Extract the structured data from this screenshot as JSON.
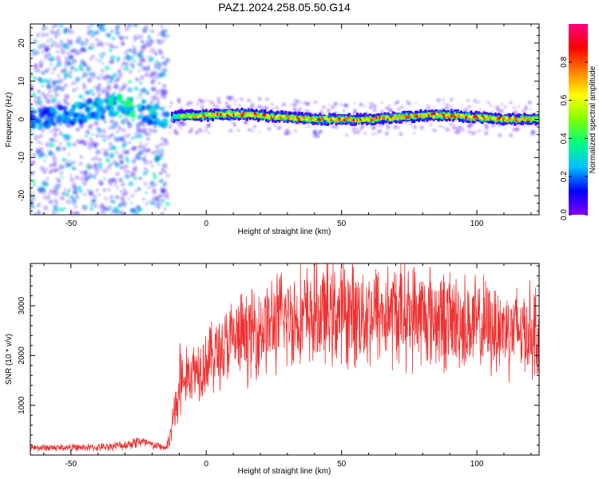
{
  "title": "PAZ1.2024.258.05.50.G14",
  "chart_data": [
    {
      "type": "heatmap",
      "xlabel": "Height of straight line (km)",
      "ylabel": "Frequency (Hz)",
      "xlim": [
        -65,
        123
      ],
      "ylim": [
        -25,
        25
      ],
      "xticks": [
        -50,
        0,
        50,
        100
      ],
      "xtick_labels": [
        "-50",
        "0",
        "50",
        "100"
      ],
      "yticks": [
        -20,
        -10,
        0,
        10,
        20
      ],
      "ytick_labels": [
        "-20",
        "-10",
        "0",
        "10",
        "20"
      ],
      "colorbar": {
        "label": "Normalized spectral amplitude",
        "range": [
          0,
          1
        ],
        "ticks": [
          0,
          0.2,
          0.4,
          0.6,
          0.8
        ],
        "tick_labels": [
          "0.0",
          "0.2",
          "0.4",
          "0.6",
          "0.8"
        ],
        "colormap": [
          "#8000ff",
          "#0000ff",
          "#00c0ff",
          "#00ff80",
          "#80ff00",
          "#ffff00",
          "#ff8000",
          "#ff0000",
          "#ff0080"
        ]
      },
      "ridge_x": [
        -60,
        -50,
        -40,
        -30,
        -27,
        -22,
        -15,
        -10,
        0,
        10,
        20,
        30,
        40,
        50,
        60,
        70,
        80,
        90,
        100,
        110,
        123
      ],
      "ridge_y": [
        0,
        1,
        3,
        4,
        3,
        2,
        0,
        1,
        1,
        1.5,
        1,
        0.5,
        0,
        0,
        0,
        0.5,
        1,
        1,
        0.5,
        0,
        0
      ],
      "ridge_strength": [
        0.25,
        0.3,
        0.35,
        0.45,
        0.45,
        0.35,
        0.3,
        0.6,
        0.8,
        0.85,
        0.85,
        0.8,
        0.8,
        0.8,
        0.8,
        0.85,
        0.85,
        0.9,
        0.85,
        0.8,
        0.75
      ],
      "grid": false
    },
    {
      "type": "line",
      "xlabel": "Height of straight line (km)",
      "ylabel": "SNR (10 * v/v)",
      "xlim": [
        -65,
        123
      ],
      "ylim": [
        0,
        3850
      ],
      "xticks": [
        -50,
        0,
        50,
        100
      ],
      "xtick_labels": [
        "-50",
        "0",
        "50",
        "100"
      ],
      "yticks": [
        1000,
        2000,
        3000
      ],
      "ytick_labels": [
        "1000",
        "2000",
        "3000"
      ],
      "color": "#f03030",
      "envelope_x": [
        -65,
        -50,
        -40,
        -30,
        -25,
        -20,
        -15,
        -13,
        -12,
        -10,
        -5,
        0,
        5,
        10,
        15,
        20,
        25,
        30,
        40,
        50,
        60,
        70,
        80,
        90,
        100,
        110,
        123
      ],
      "envelope_y": [
        150,
        150,
        150,
        200,
        280,
        200,
        150,
        350,
        800,
        1400,
        1700,
        1900,
        2100,
        2300,
        2400,
        2550,
        2650,
        2750,
        2800,
        2850,
        2850,
        2850,
        2800,
        2700,
        2600,
        2550,
        2500
      ],
      "grid": false
    }
  ]
}
